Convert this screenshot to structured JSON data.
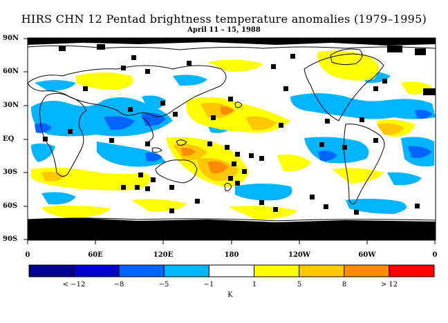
{
  "title": "HIRS CHN 12 Pentad brightness temperature anomalies (1979–1995)",
  "subtitle": "April 11 – 15, 1988",
  "lat_labels": [
    "90N",
    "60N",
    "30N",
    "EQ",
    "30S",
    "60S",
    "90S"
  ],
  "lon_labels": [
    "0",
    "60E",
    "120E",
    "180",
    "120W",
    "60W",
    "0"
  ],
  "colorbar": {
    "labels": [
      "< −12",
      "−8",
      "−5",
      "−1",
      "1",
      "5",
      "8",
      "> 12"
    ],
    "unit": "K",
    "colors": [
      "#000090",
      "#0000c8",
      "#0064ff",
      "#00b4ff",
      "#ffffff",
      "#ffff00",
      "#ffc800",
      "#ff8c00",
      "#ff0000"
    ]
  },
  "palette": {
    "land_outline": "#000000",
    "missing_data": "#000000",
    "background": "#ffffff"
  }
}
